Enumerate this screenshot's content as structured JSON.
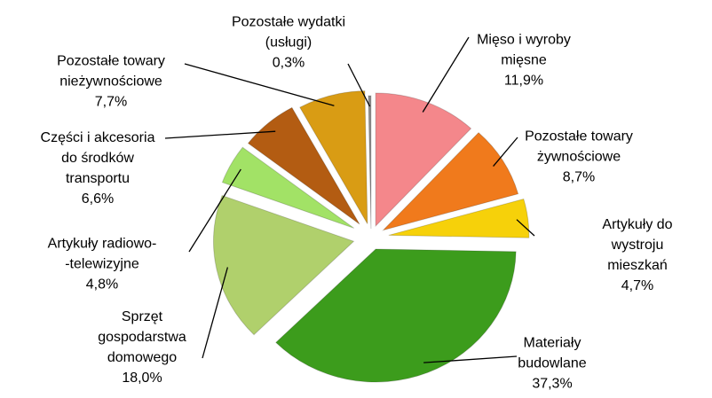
{
  "chart_data": {
    "type": "pie",
    "categories": [
      "Mięso i wyroby\nmięsne",
      "Pozostałe towary\nżywnościowe",
      "Artykuły do wystroju\nmieszkań",
      "Materiały\nbudowlane",
      "Sprzęt\ngospodarstwa\ndomowego",
      "Artykuły radiowo-\n-telewizyjne",
      "Części i akcesoria\ndo środków\ntransportu",
      "Pozostałe towary\nnieżywnościowe",
      "Pozostałe wydatki\n(usługi)"
    ],
    "values": [
      11.9,
      8.7,
      4.7,
      37.3,
      18.0,
      4.8,
      6.6,
      7.7,
      0.3
    ],
    "value_labels": [
      "11,9%",
      "8,7%",
      "4,7%",
      "37,3%",
      "18,0%",
      "4,8%",
      "6,6%",
      "7,7%",
      "0,3%"
    ],
    "colors": [
      "#f4878b",
      "#f07a1c",
      "#f6d10a",
      "#3c9c1c",
      "#b0d06c",
      "#a2e266",
      "#b35c12",
      "#d99c14",
      "#8a8a8a"
    ]
  }
}
